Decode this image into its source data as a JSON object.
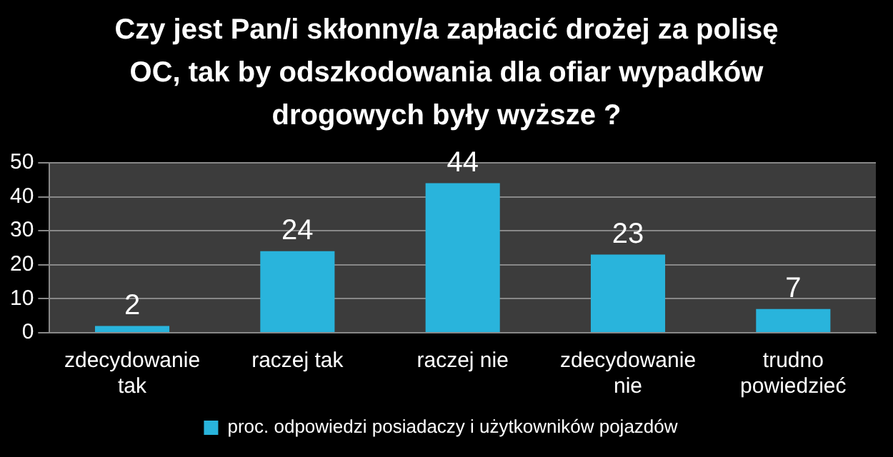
{
  "chart_data": {
    "type": "bar",
    "title": "Czy jest Pan/i skłonny/a zapłacić drożej za polisę OC, tak by odszkodowania dla ofiar wypadków drogowych były wyższe ?",
    "categories": [
      "zdecydowanie tak",
      "raczej tak",
      "raczej nie",
      "zdecydowanie nie",
      "trudno powiedzieć"
    ],
    "series": [
      {
        "name": "proc. odpowiedzi posiadaczy i użytkowników pojazdów",
        "color": "#29b4dc",
        "values": [
          2,
          24,
          44,
          23,
          7
        ]
      }
    ],
    "ylim": [
      0,
      50
    ],
    "yticks": [
      0,
      10,
      20,
      30,
      40,
      50
    ],
    "grid": "y",
    "legend": "bottom",
    "data_labels": true
  }
}
